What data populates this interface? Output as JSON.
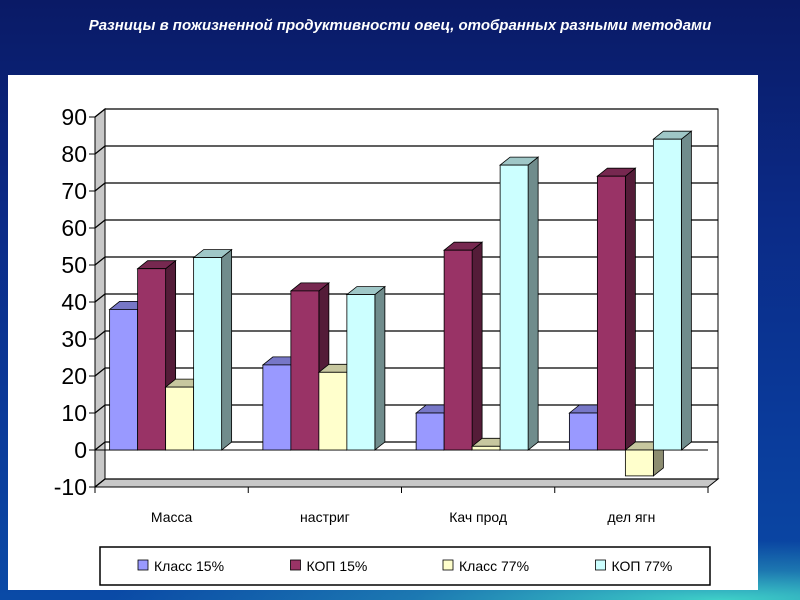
{
  "slide": {
    "title": "Разницы в пожизненной продуктивности овец, отобранных разными методами"
  },
  "chart_data": {
    "type": "bar",
    "title": "Разницы в пожизненной продуктивности овец, отобранных разными методами",
    "categories": [
      "Масса",
      "настриг",
      "Кач прод",
      "дел ягн"
    ],
    "series": [
      {
        "name": "Класс 15%",
        "values": [
          38,
          23,
          10,
          10
        ],
        "color": "#9999ff"
      },
      {
        "name": "КОП 15%",
        "values": [
          49,
          43,
          54,
          74
        ],
        "color": "#993366"
      },
      {
        "name": "Класс 77%",
        "values": [
          17,
          21,
          1,
          -7
        ],
        "color": "#ffffcc"
      },
      {
        "name": "КОП 77%",
        "values": [
          52,
          42,
          77,
          84
        ],
        "color": "#ccffff"
      }
    ],
    "ylim": [
      -10,
      90
    ],
    "yticks": [
      -10,
      0,
      10,
      20,
      30,
      40,
      50,
      60,
      70,
      80,
      90
    ],
    "grid": true,
    "legend": "bottom",
    "xlabel": "",
    "ylabel": ""
  }
}
